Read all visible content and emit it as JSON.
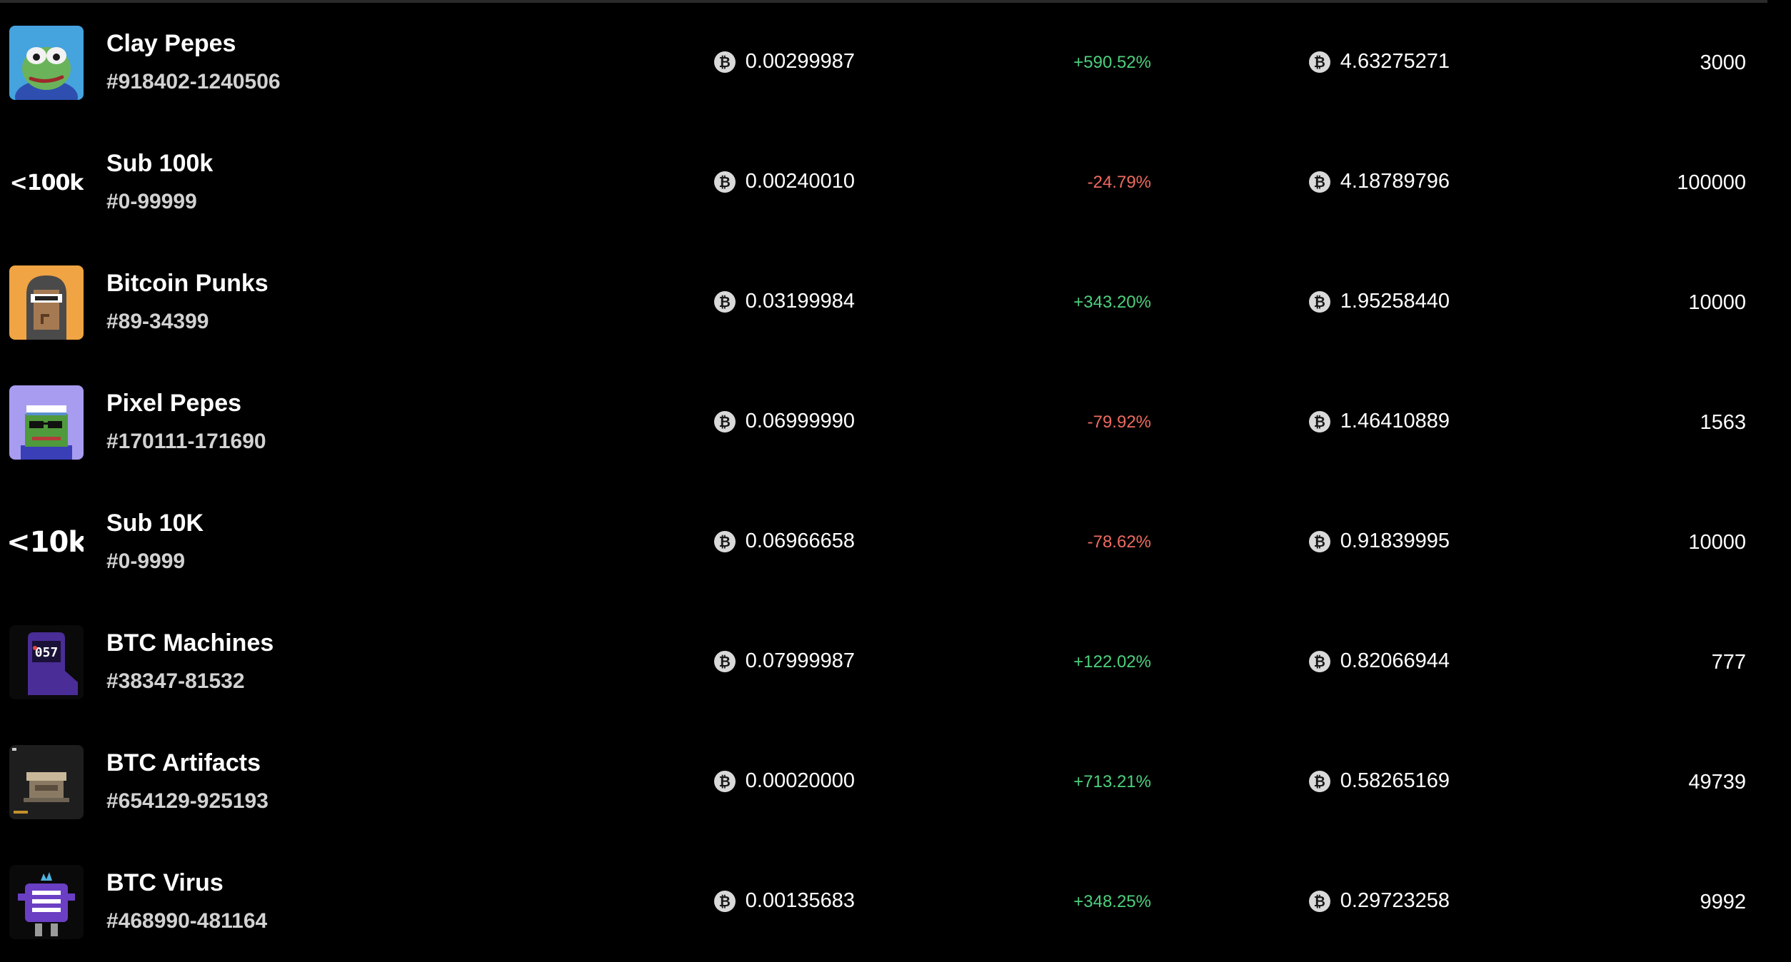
{
  "colors": {
    "background": "#000000",
    "positive": "#4cd07d",
    "negative": "#ee6a5f",
    "secondary_text": "#d2d2d2"
  },
  "collections": [
    {
      "name": "Clay Pepes",
      "range": "#918402-1240506",
      "price": "0.00299987",
      "change": "+590.52%",
      "direction": "up",
      "volume": "4.63275271",
      "supply": "3000",
      "thumb": "clay-pepe-image"
    },
    {
      "name": "Sub 100k",
      "range": "#0-99999",
      "price": "0.00240010",
      "change": "-24.79%",
      "direction": "down",
      "volume": "4.18789796",
      "supply": "100000",
      "thumb_text": "<100k"
    },
    {
      "name": "Bitcoin Punks",
      "range": "#89-34399",
      "price": "0.03199984",
      "change": "+343.20%",
      "direction": "up",
      "volume": "1.95258440",
      "supply": "10000",
      "thumb": "bitcoin-punk-image"
    },
    {
      "name": "Pixel Pepes",
      "range": "#170111-171690",
      "price": "0.06999990",
      "change": "-79.92%",
      "direction": "down",
      "volume": "1.46410889",
      "supply": "1563",
      "thumb": "pixel-pepe-image"
    },
    {
      "name": "Sub 10K",
      "range": "#0-9999",
      "price": "0.06966658",
      "change": "-78.62%",
      "direction": "down",
      "volume": "0.91839995",
      "supply": "10000",
      "thumb_text": "<10k"
    },
    {
      "name": "BTC Machines",
      "range": "#38347-81532",
      "price": "0.07999987",
      "change": "+122.02%",
      "direction": "up",
      "volume": "0.82066944",
      "supply": "777",
      "thumb": "btc-machine-image",
      "thumb_label": "057"
    },
    {
      "name": "BTC Artifacts",
      "range": "#654129-925193",
      "price": "0.00020000",
      "change": "+713.21%",
      "direction": "up",
      "volume": "0.58265169",
      "supply": "49739",
      "thumb": "btc-artifact-image"
    },
    {
      "name": "BTC Virus",
      "range": "#468990-481164",
      "price": "0.00135683",
      "change": "+348.25%",
      "direction": "up",
      "volume": "0.29723258",
      "supply": "9992",
      "thumb": "btc-virus-image"
    }
  ],
  "currency_icon": "btc-coin-icon",
  "currency_glyph": "₿"
}
